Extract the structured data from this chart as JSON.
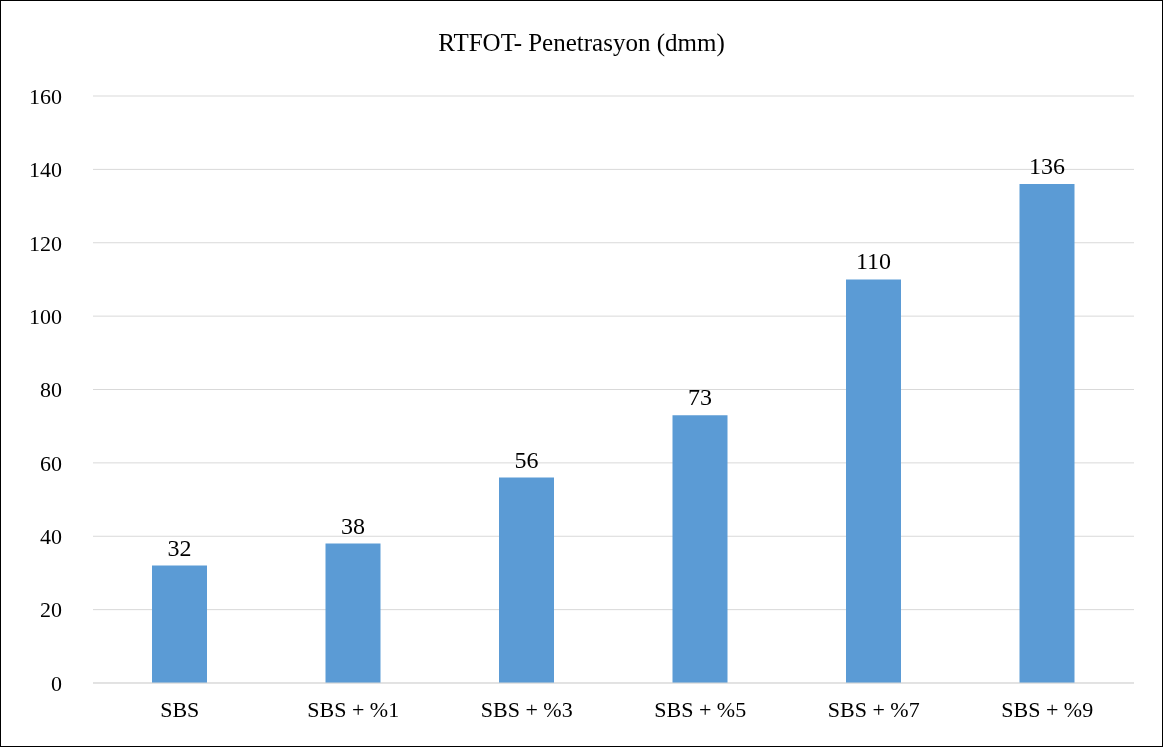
{
  "chart_data": {
    "type": "bar",
    "title": "RTFOT- Penetrasyon (dmm)",
    "categories": [
      "SBS",
      "SBS + %1",
      "SBS + %3",
      "SBS + %5",
      "SBS + %7",
      "SBS + %9"
    ],
    "values": [
      32,
      38,
      56,
      73,
      110,
      136
    ],
    "color": "#5b9bd5",
    "ylim": [
      0,
      160
    ],
    "yticks": [
      0,
      20,
      40,
      60,
      80,
      100,
      120,
      140,
      160
    ],
    "grid": "y",
    "data_labels": true
  }
}
